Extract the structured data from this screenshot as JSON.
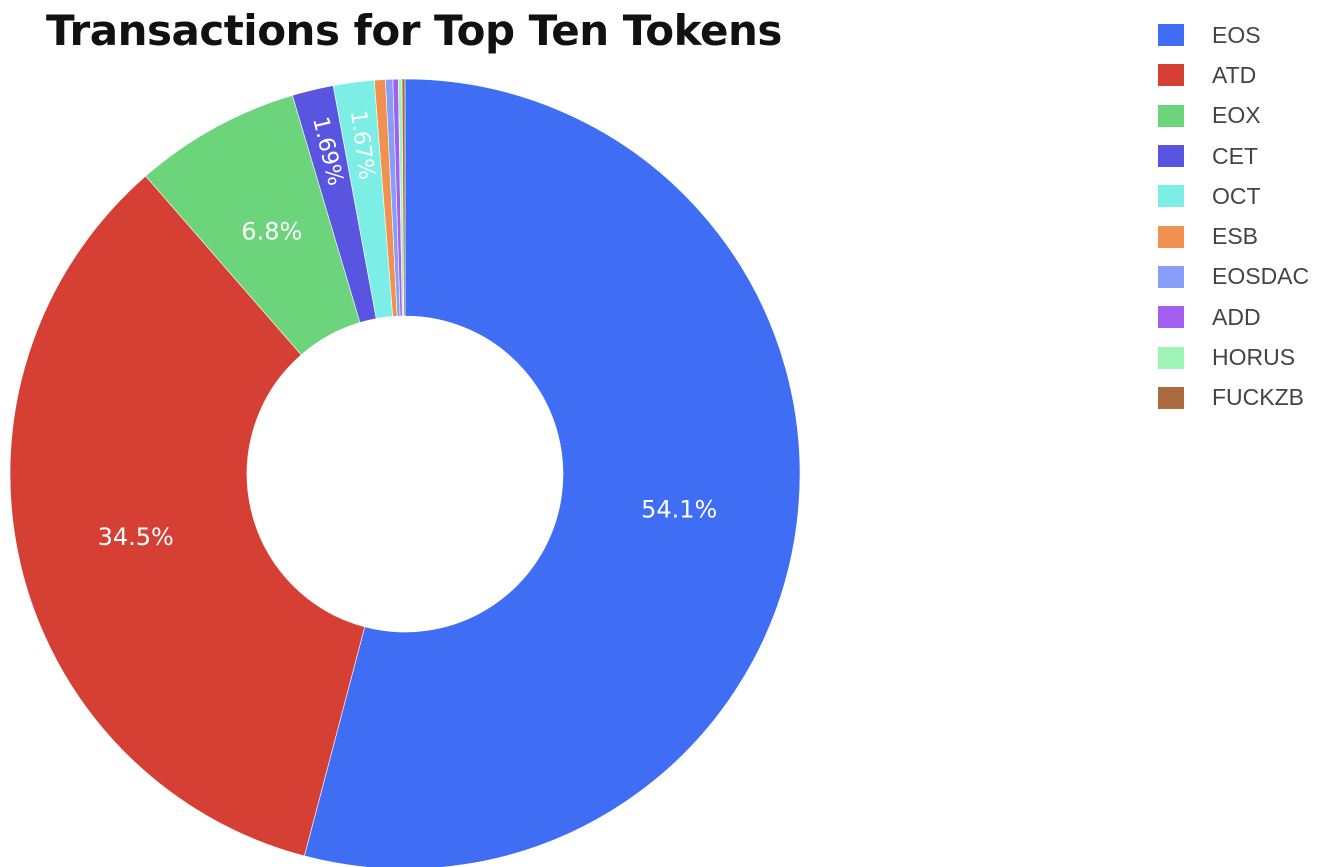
{
  "chart_data": {
    "type": "pie",
    "title": "Transactions for Top Ten Tokens",
    "hole": 0.4,
    "direction": "clockwise",
    "categories": [
      "EOS",
      "ATD",
      "EOX",
      "CET",
      "OCT",
      "ESB",
      "EOSDAC",
      "ADD",
      "HORUS",
      "FUCKZB"
    ],
    "values": [
      54.1,
      34.5,
      6.8,
      1.69,
      1.67,
      0.45,
      0.3,
      0.22,
      0.15,
      0.12
    ],
    "slice_labels": [
      "54.1%",
      "34.5%",
      "6.8%",
      "1.69%",
      "1.67%",
      "",
      "",
      "",
      "",
      ""
    ],
    "colors": [
      "#3f6ef5",
      "#d63f33",
      "#6cd47a",
      "#5a55e0",
      "#7deee6",
      "#f0914f",
      "#869ef7",
      "#a55ff0",
      "#9ff5b5",
      "#a86a3e"
    ],
    "legend": "top-right"
  }
}
